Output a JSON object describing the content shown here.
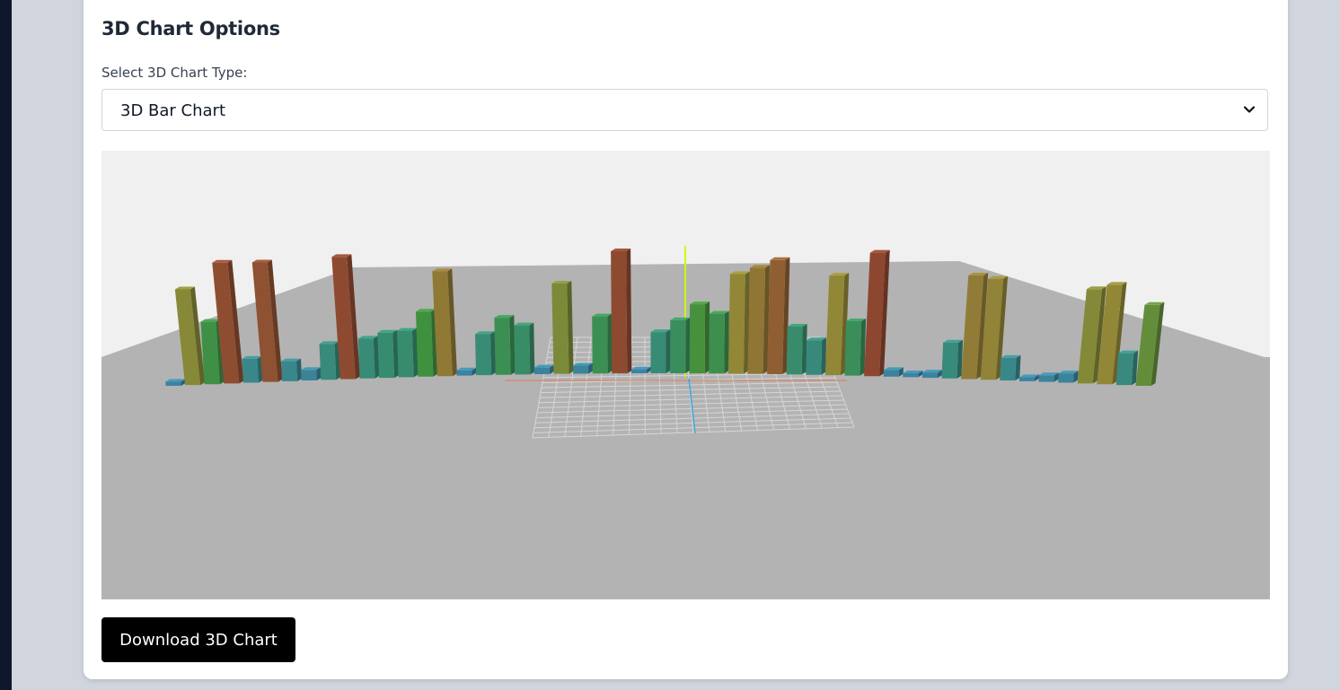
{
  "section": {
    "title": "3D Chart Options"
  },
  "chart_type_select": {
    "label": "Select 3D Chart Type:",
    "selected": "3D Bar Chart"
  },
  "download_button": {
    "label": "Download 3D Chart"
  },
  "colors": {
    "sky": "#f0f0f0",
    "floor": "#b3b3b3",
    "button_bg": "#000000"
  },
  "chart_data": {
    "type": "bar",
    "values": [
      0.3,
      7.2,
      4.7,
      9.1,
      1.8,
      9.0,
      1.5,
      0.8,
      2.7,
      9.2,
      3.0,
      3.4,
      3.5,
      4.9,
      7.9,
      0.4,
      3.1,
      4.3,
      3.7,
      0.5,
      6.8,
      0.6,
      4.3,
      9.2,
      0.3,
      3.1,
      4.0,
      5.2,
      4.5,
      7.5,
      8.0,
      8.6,
      3.6,
      2.6,
      7.5,
      4.1,
      9.3,
      0.5,
      0.3,
      0.4,
      2.7,
      7.8,
      7.6,
      1.7,
      0.3,
      0.5,
      0.7,
      7.1,
      7.5,
      2.4,
      6.1
    ]
  }
}
